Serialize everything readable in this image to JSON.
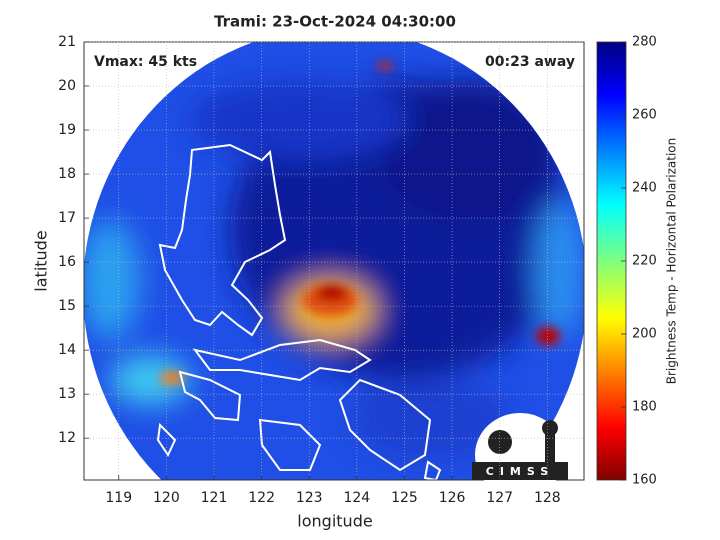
{
  "chart_data": {
    "type": "image",
    "title": "Trami: 23-Oct-2024 04:30:00",
    "annotations": [
      "Vmax: 45 kts",
      "00:23 away"
    ],
    "x_label": "longitude",
    "y_label": "latitude",
    "xlim": [
      118.27,
      128.77
    ],
    "ylim": [
      11.05,
      21
    ],
    "xticks": [
      119,
      120,
      121,
      122,
      123,
      124,
      125,
      126,
      127,
      128
    ],
    "yticks": [
      12,
      13,
      14,
      15,
      16,
      17,
      18,
      19,
      20,
      21
    ],
    "grid": true,
    "colorbar_label": "Brightness Temp - Horizontal Polarization",
    "clim": [
      160,
      280
    ],
    "cticks": [
      160,
      180,
      200,
      220,
      240,
      260,
      280
    ],
    "logo_text": "CIMSS"
  }
}
